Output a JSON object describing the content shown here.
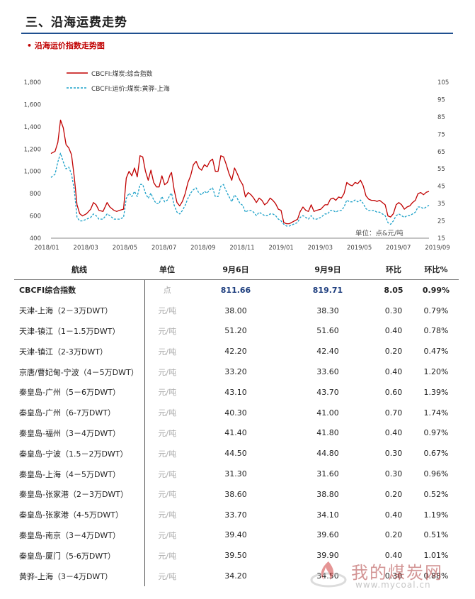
{
  "header": {
    "section_title": "三、沿海运费走势",
    "sub_title": "• 沿海运价指数走势图"
  },
  "colors": {
    "series_solid": "#c00000",
    "series_dashed": "#1aa0c8",
    "title_rule": "#1f4f8f",
    "subtitle": "#c00000"
  },
  "chart_data": {
    "type": "line",
    "unit_note": "单位：点&元/吨",
    "x_ticks": [
      "2018/01",
      "2018/03",
      "2018/05",
      "2018/07",
      "2018/09",
      "2018/11",
      "2019/01",
      "2019/03",
      "2019/05",
      "2019/07",
      "2019/09"
    ],
    "y_left": {
      "range": [
        400,
        1800
      ],
      "ticks": [
        "400",
        "600",
        "800",
        "1,000",
        "1,200",
        "1,400",
        "1,600",
        "1,800"
      ]
    },
    "y_right": {
      "range": [
        15,
        105
      ],
      "ticks": [
        "15",
        "25",
        "35",
        "45",
        "55",
        "65",
        "75",
        "85",
        "95",
        "105"
      ]
    },
    "legend_position": "top-left",
    "grid": false,
    "series": [
      {
        "name": "CBCFI:煤炭:综合指数",
        "axis": "left",
        "style": "solid",
        "points": [
          [
            0,
            1160
          ],
          [
            3,
            1180
          ],
          [
            5,
            1260
          ],
          [
            7,
            1460
          ],
          [
            9,
            1390
          ],
          [
            11,
            1240
          ],
          [
            13,
            1210
          ],
          [
            15,
            1150
          ],
          [
            17,
            950
          ],
          [
            19,
            700
          ],
          [
            21,
            620
          ],
          [
            23,
            600
          ],
          [
            26,
            620
          ],
          [
            29,
            660
          ],
          [
            31,
            720
          ],
          [
            33,
            700
          ],
          [
            35,
            650
          ],
          [
            38,
            640
          ],
          [
            41,
            720
          ],
          [
            43,
            680
          ],
          [
            46,
            650
          ],
          [
            48,
            640
          ],
          [
            50,
            650
          ],
          [
            53,
            660
          ],
          [
            55,
            940
          ],
          [
            57,
            1000
          ],
          [
            59,
            960
          ],
          [
            61,
            1030
          ],
          [
            63,
            950
          ],
          [
            65,
            1140
          ],
          [
            67,
            1130
          ],
          [
            69,
            1000
          ],
          [
            71,
            920
          ],
          [
            73,
            1010
          ],
          [
            75,
            900
          ],
          [
            77,
            860
          ],
          [
            79,
            860
          ],
          [
            81,
            960
          ],
          [
            83,
            880
          ],
          [
            85,
            900
          ],
          [
            87,
            970
          ],
          [
            88,
            990
          ],
          [
            90,
            830
          ],
          [
            92,
            720
          ],
          [
            94,
            690
          ],
          [
            96,
            730
          ],
          [
            98,
            800
          ],
          [
            100,
            900
          ],
          [
            102,
            960
          ],
          [
            104,
            1060
          ],
          [
            106,
            1090
          ],
          [
            108,
            1030
          ],
          [
            110,
            1010
          ],
          [
            112,
            1060
          ],
          [
            114,
            1040
          ],
          [
            116,
            1090
          ],
          [
            118,
            1110
          ],
          [
            120,
            1000
          ],
          [
            122,
            1000
          ],
          [
            124,
            1140
          ],
          [
            126,
            1130
          ],
          [
            128,
            1060
          ],
          [
            130,
            980
          ],
          [
            132,
            920
          ],
          [
            134,
            1030
          ],
          [
            136,
            980
          ],
          [
            138,
            920
          ],
          [
            140,
            880
          ],
          [
            142,
            770
          ],
          [
            144,
            810
          ],
          [
            146,
            790
          ],
          [
            148,
            760
          ],
          [
            150,
            720
          ],
          [
            152,
            760
          ],
          [
            154,
            740
          ],
          [
            156,
            700
          ],
          [
            158,
            720
          ],
          [
            160,
            760
          ],
          [
            162,
            740
          ],
          [
            164,
            710
          ],
          [
            166,
            660
          ],
          [
            168,
            650
          ],
          [
            170,
            540
          ],
          [
            172,
            530
          ],
          [
            174,
            530
          ],
          [
            177,
            550
          ],
          [
            180,
            570
          ],
          [
            182,
            640
          ],
          [
            184,
            680
          ],
          [
            186,
            650
          ],
          [
            188,
            640
          ],
          [
            190,
            700
          ],
          [
            192,
            640
          ],
          [
            194,
            650
          ],
          [
            197,
            660
          ],
          [
            200,
            700
          ],
          [
            202,
            700
          ],
          [
            204,
            750
          ],
          [
            206,
            760
          ],
          [
            208,
            740
          ],
          [
            210,
            770
          ],
          [
            212,
            760
          ],
          [
            214,
            800
          ],
          [
            216,
            900
          ],
          [
            218,
            880
          ],
          [
            220,
            870
          ],
          [
            222,
            900
          ],
          [
            224,
            890
          ],
          [
            226,
            920
          ],
          [
            228,
            870
          ],
          [
            230,
            780
          ],
          [
            232,
            750
          ],
          [
            234,
            740
          ],
          [
            236,
            740
          ],
          [
            238,
            730
          ],
          [
            240,
            740
          ],
          [
            242,
            720
          ],
          [
            244,
            700
          ],
          [
            246,
            600
          ],
          [
            248,
            590
          ],
          [
            250,
            620
          ],
          [
            252,
            700
          ],
          [
            254,
            720
          ],
          [
            256,
            700
          ],
          [
            258,
            660
          ],
          [
            260,
            680
          ],
          [
            262,
            690
          ],
          [
            264,
            720
          ],
          [
            266,
            740
          ],
          [
            268,
            800
          ],
          [
            270,
            810
          ],
          [
            272,
            790
          ],
          [
            274,
            812
          ],
          [
            276,
            820
          ]
        ]
      },
      {
        "name": "CBCFI:运价:煤炭:黄骅-上海",
        "axis": "right",
        "style": "dashed",
        "points": [
          [
            0,
            50
          ],
          [
            3,
            52
          ],
          [
            5,
            59
          ],
          [
            7,
            64
          ],
          [
            9,
            59
          ],
          [
            11,
            55
          ],
          [
            13,
            56
          ],
          [
            15,
            52
          ],
          [
            17,
            43
          ],
          [
            19,
            27
          ],
          [
            21,
            25
          ],
          [
            23,
            25
          ],
          [
            26,
            26
          ],
          [
            29,
            27
          ],
          [
            31,
            29
          ],
          [
            33,
            28
          ],
          [
            35,
            26
          ],
          [
            38,
            26
          ],
          [
            41,
            29
          ],
          [
            43,
            28
          ],
          [
            46,
            26
          ],
          [
            48,
            26
          ],
          [
            50,
            26
          ],
          [
            53,
            27
          ],
          [
            55,
            38
          ],
          [
            57,
            41
          ],
          [
            59,
            39
          ],
          [
            61,
            42
          ],
          [
            63,
            39
          ],
          [
            65,
            46
          ],
          [
            67,
            46
          ],
          [
            69,
            41
          ],
          [
            71,
            38
          ],
          [
            73,
            41
          ],
          [
            75,
            37
          ],
          [
            77,
            35
          ],
          [
            79,
            35
          ],
          [
            81,
            39
          ],
          [
            83,
            36
          ],
          [
            85,
            37
          ],
          [
            87,
            40
          ],
          [
            88,
            41
          ],
          [
            90,
            34
          ],
          [
            92,
            30
          ],
          [
            94,
            29
          ],
          [
            96,
            31
          ],
          [
            98,
            34
          ],
          [
            100,
            38
          ],
          [
            102,
            41
          ],
          [
            104,
            43
          ],
          [
            106,
            44
          ],
          [
            108,
            41
          ],
          [
            110,
            40
          ],
          [
            112,
            42
          ],
          [
            114,
            41
          ],
          [
            116,
            43
          ],
          [
            118,
            44
          ],
          [
            120,
            39
          ],
          [
            122,
            39
          ],
          [
            124,
            45
          ],
          [
            126,
            46
          ],
          [
            128,
            42
          ],
          [
            130,
            39
          ],
          [
            132,
            36
          ],
          [
            134,
            40
          ],
          [
            136,
            38
          ],
          [
            138,
            35
          ],
          [
            140,
            34
          ],
          [
            142,
            30
          ],
          [
            144,
            31
          ],
          [
            146,
            31
          ],
          [
            148,
            30
          ],
          [
            150,
            28
          ],
          [
            152,
            30
          ],
          [
            154,
            29
          ],
          [
            156,
            28
          ],
          [
            158,
            28
          ],
          [
            160,
            29
          ],
          [
            162,
            29
          ],
          [
            164,
            28
          ],
          [
            166,
            26
          ],
          [
            168,
            25
          ],
          [
            170,
            23
          ],
          [
            172,
            22
          ],
          [
            174,
            22
          ],
          [
            177,
            23
          ],
          [
            180,
            24
          ],
          [
            182,
            27
          ],
          [
            184,
            28
          ],
          [
            186,
            27
          ],
          [
            188,
            26
          ],
          [
            190,
            28
          ],
          [
            192,
            26
          ],
          [
            194,
            26
          ],
          [
            197,
            27
          ],
          [
            200,
            29
          ],
          [
            202,
            29
          ],
          [
            204,
            31
          ],
          [
            206,
            31
          ],
          [
            208,
            30
          ],
          [
            210,
            31
          ],
          [
            212,
            31
          ],
          [
            214,
            33
          ],
          [
            216,
            37
          ],
          [
            218,
            36
          ],
          [
            220,
            36
          ],
          [
            222,
            37
          ],
          [
            224,
            36
          ],
          [
            226,
            37
          ],
          [
            228,
            35
          ],
          [
            230,
            32
          ],
          [
            232,
            31
          ],
          [
            234,
            31
          ],
          [
            236,
            31
          ],
          [
            238,
            30
          ],
          [
            240,
            30
          ],
          [
            242,
            29
          ],
          [
            244,
            28
          ],
          [
            246,
            24
          ],
          [
            248,
            23
          ],
          [
            250,
            25
          ],
          [
            252,
            28
          ],
          [
            254,
            29
          ],
          [
            256,
            28
          ],
          [
            258,
            27
          ],
          [
            260,
            28
          ],
          [
            262,
            28
          ],
          [
            264,
            29
          ],
          [
            266,
            30
          ],
          [
            268,
            33
          ],
          [
            270,
            33
          ],
          [
            272,
            32
          ],
          [
            274,
            33
          ],
          [
            276,
            34
          ]
        ]
      }
    ]
  },
  "table": {
    "headers": [
      "航线",
      "单位",
      "9月6日",
      "9月9日",
      "环比",
      "环比%"
    ],
    "rows": [
      [
        "CBCFI综合指数",
        "点",
        "811.66",
        "819.71",
        "8.05",
        "0.99%"
      ],
      [
        "天津-上海（2－3万DWT）",
        "元/吨",
        "38.00",
        "38.30",
        "0.30",
        "0.79%"
      ],
      [
        "天津-镇江（1－1.5万DWT）",
        "元/吨",
        "51.20",
        "51.60",
        "0.40",
        "0.78%"
      ],
      [
        "天津-镇江（2-3万DWT）",
        "元/吨",
        "42.20",
        "42.40",
        "0.20",
        "0.47%"
      ],
      [
        "京唐/曹妃甸-宁波（4－5万DWT）",
        "元/吨",
        "33.20",
        "33.60",
        "0.40",
        "1.20%"
      ],
      [
        "秦皇岛-广州（5－6万DWT）",
        "元/吨",
        "43.10",
        "43.70",
        "0.60",
        "1.39%"
      ],
      [
        "秦皇岛-广州（6-7万DWT）",
        "元/吨",
        "40.30",
        "41.00",
        "0.70",
        "1.74%"
      ],
      [
        "秦皇岛-福州（3－4万DWT）",
        "元/吨",
        "41.40",
        "41.80",
        "0.40",
        "0.97%"
      ],
      [
        "秦皇岛-宁波（1.5－2万DWT）",
        "元/吨",
        "44.50",
        "44.80",
        "0.30",
        "0.67%"
      ],
      [
        "秦皇岛-上海（4－5万DWT）",
        "元/吨",
        "31.30",
        "31.60",
        "0.30",
        "0.96%"
      ],
      [
        "秦皇岛-张家港（2－3万DWT）",
        "元/吨",
        "38.60",
        "38.80",
        "0.20",
        "0.52%"
      ],
      [
        "秦皇岛-张家港（4-5万DWT）",
        "元/吨",
        "33.70",
        "34.10",
        "0.40",
        "1.19%"
      ],
      [
        "秦皇岛-南京（3－4万DWT）",
        "元/吨",
        "39.40",
        "39.60",
        "0.20",
        "0.51%"
      ],
      [
        "秦皇岛-厦门（5-6万DWT）",
        "元/吨",
        "39.50",
        "39.90",
        "0.40",
        "1.01%"
      ],
      [
        "黄骅-上海（3－4万DWT）",
        "元/吨",
        "34.20",
        "34.50",
        "0.30",
        "0.88%"
      ]
    ]
  },
  "watermark": {
    "text": "我的煤炭网",
    "url": "www.mycoal.cn"
  }
}
